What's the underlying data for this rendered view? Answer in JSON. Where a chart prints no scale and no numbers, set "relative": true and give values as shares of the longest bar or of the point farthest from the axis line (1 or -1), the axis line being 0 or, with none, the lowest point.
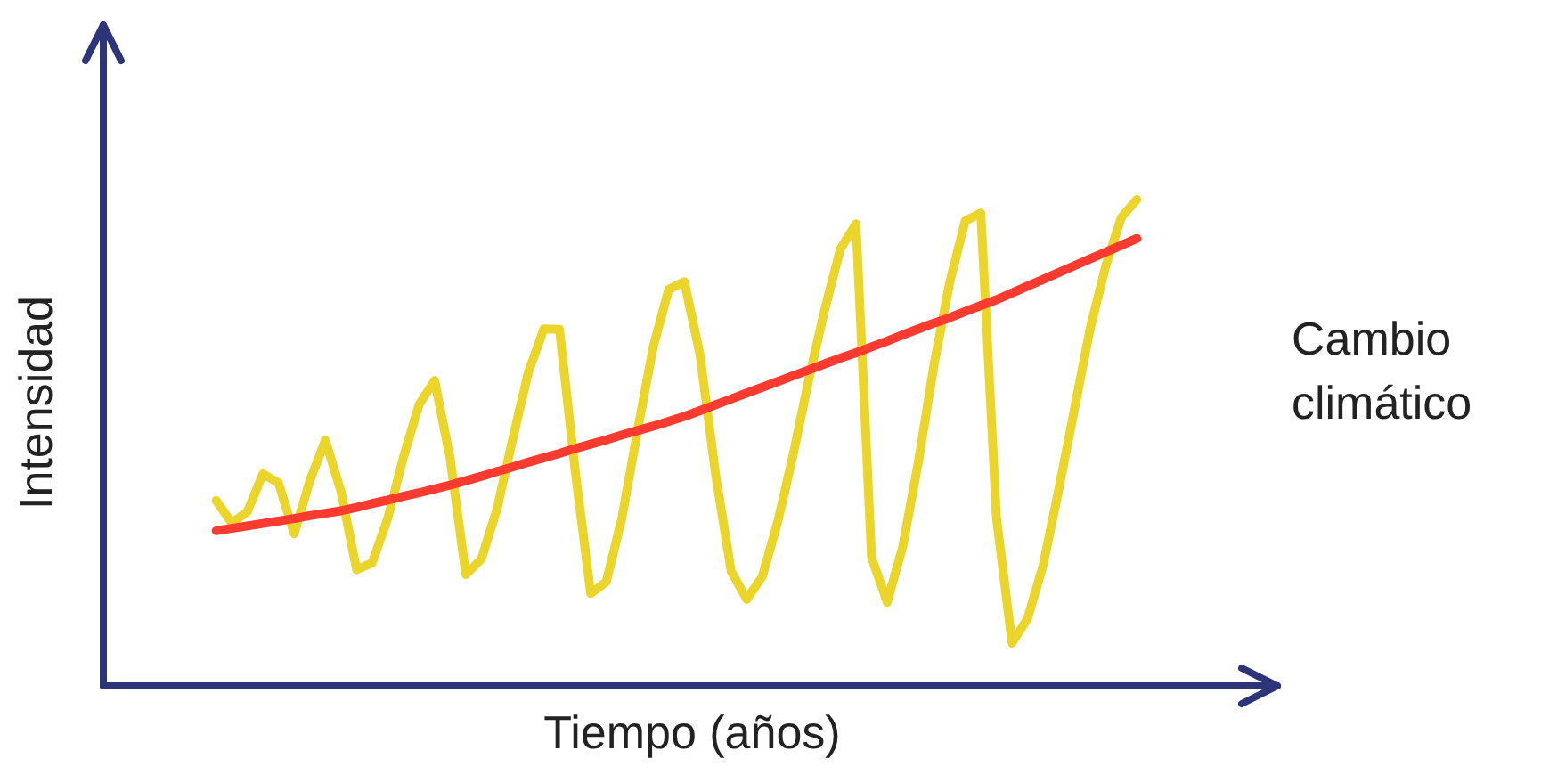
{
  "chart_data": {
    "type": "line",
    "relative": true,
    "xlabel": "Tiempo (años)",
    "ylabel": "Intensidad",
    "annotations": [
      "Cambio climático"
    ],
    "marker": "none",
    "line_style": "solid",
    "categories": [
      null,
      null,
      null,
      null,
      null,
      null,
      null,
      null,
      null,
      null,
      null,
      null,
      null,
      null,
      null,
      null,
      null,
      null,
      null,
      null,
      null,
      null,
      null,
      null,
      null,
      null,
      null,
      null,
      null,
      null,
      null,
      null,
      null,
      null,
      null,
      null,
      null,
      null,
      null,
      null,
      null,
      null,
      null,
      null,
      null,
      null,
      null,
      null,
      null,
      null,
      null,
      null,
      null,
      null,
      null,
      null,
      null,
      null,
      null,
      null,
      null,
      null,
      null,
      null,
      null,
      null,
      null,
      null,
      null,
      null,
      null,
      null,
      null,
      null,
      null,
      null
    ],
    "series": [
      {
        "color": "#ecd52a",
        "values": [
          null,
          null,
          null,
          null,
          null,
          null,
          null,
          0.381,
          0.335,
          0.358,
          0.436,
          0.417,
          0.313,
          0.421,
          0.505,
          0.4,
          0.239,
          0.253,
          0.345,
          0.47,
          0.578,
          0.628,
          0.467,
          0.229,
          0.261,
          0.364,
          0.507,
          0.644,
          0.734,
          0.733,
          0.444,
          0.19,
          0.214,
          0.345,
          0.524,
          0.696,
          0.815,
          0.831,
          0.682,
          0.436,
          0.236,
          0.178,
          0.225,
          0.339,
          0.479,
          0.634,
          0.774,
          0.898,
          0.95,
          0.264,
          0.172,
          0.287,
          0.461,
          0.66,
          0.829,
          0.956,
          0.972,
          0.347,
          0.088,
          0.139,
          0.249,
          0.405,
          0.569,
          0.734,
          0.863,
          0.963,
          1,
          null,
          null,
          null,
          null,
          null,
          null,
          null,
          null,
          null
        ]
      },
      {
        "color": "#fb3a30",
        "values": [
          null,
          null,
          null,
          null,
          null,
          null,
          null,
          0.319,
          0.324,
          0.329,
          0.334,
          0.339,
          0.344,
          0.35,
          0.355,
          0.36,
          0.367,
          0.375,
          0.382,
          0.39,
          0.397,
          0.405,
          0.413,
          0.422,
          0.431,
          0.441,
          0.45,
          0.46,
          0.469,
          0.478,
          0.488,
          0.497,
          0.506,
          0.516,
          0.525,
          0.534,
          0.544,
          0.554,
          0.566,
          0.578,
          0.59,
          0.602,
          0.614,
          0.626,
          0.638,
          0.65,
          0.662,
          0.674,
          0.685,
          0.697,
          0.709,
          0.722,
          0.734,
          0.746,
          0.757,
          0.77,
          0.782,
          0.794,
          0.808,
          0.822,
          0.836,
          0.85,
          0.864,
          0.878,
          0.892,
          0.906,
          0.92,
          null,
          null,
          null,
          null,
          null,
          null,
          null,
          null,
          null
        ]
      }
    ]
  }
}
